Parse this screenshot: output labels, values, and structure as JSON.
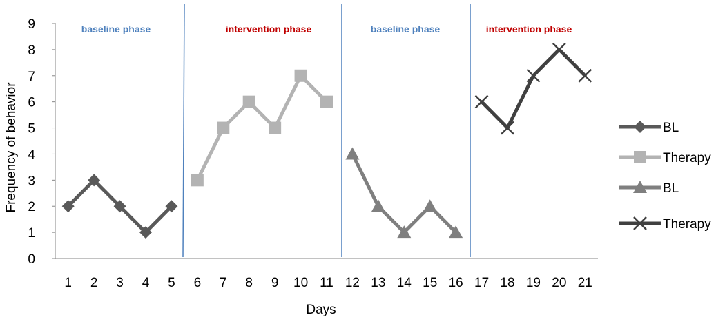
{
  "chart_data": {
    "type": "line",
    "title": "",
    "xlabel": "Days",
    "ylabel": "Frequency of behavior",
    "x_ticks": [
      "1",
      "2",
      "3",
      "4",
      "5",
      "6",
      "7",
      "8",
      "9",
      "10",
      "11",
      "12",
      "13",
      "14",
      "15",
      "16",
      "17",
      "18",
      "19",
      "20",
      "21"
    ],
    "y_ticks": [
      "0",
      "1",
      "2",
      "3",
      "4",
      "5",
      "6",
      "7",
      "8",
      "9"
    ],
    "ylim": [
      0,
      9
    ],
    "grid": false,
    "legend_position": "right",
    "series": [
      {
        "name": "BL",
        "marker": "diamond",
        "color": "#595959",
        "x": [
          1,
          2,
          3,
          4,
          5
        ],
        "values": [
          2,
          3,
          2,
          1,
          2
        ]
      },
      {
        "name": "Therapy",
        "marker": "square",
        "color": "#b3b3b3",
        "x": [
          6,
          7,
          8,
          9,
          10,
          11
        ],
        "values": [
          3,
          5,
          6,
          5,
          7,
          6
        ]
      },
      {
        "name": "BL",
        "marker": "triangle",
        "color": "#7f7f7f",
        "x": [
          12,
          13,
          14,
          15,
          16
        ],
        "values": [
          4,
          2,
          1,
          2,
          1
        ]
      },
      {
        "name": "Therapy",
        "marker": "x",
        "color": "#404040",
        "x": [
          17,
          18,
          19,
          20,
          21
        ],
        "values": [
          6,
          5,
          7,
          8,
          7
        ]
      }
    ],
    "phases": [
      {
        "label": "baseline phase",
        "color": "#4f81bd"
      },
      {
        "label": "intervention phase",
        "color": "#c00000"
      },
      {
        "label": "baseline phase",
        "color": "#4f81bd"
      },
      {
        "label": "intervention phase",
        "color": "#c00000"
      }
    ],
    "phase_boundaries": [
      5.5,
      11.5,
      16.5
    ],
    "divider_color": "#4f81bd"
  }
}
